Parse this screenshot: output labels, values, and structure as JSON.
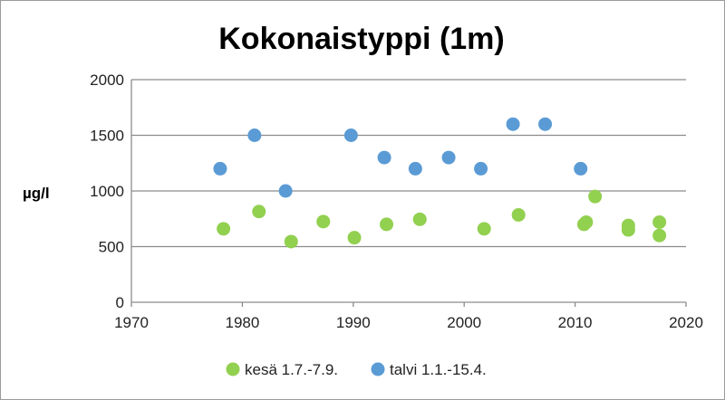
{
  "chart_data": {
    "type": "scatter",
    "title": "Kokonaistyppi (1m)",
    "xlabel": "",
    "ylabel": "µg/l",
    "xlim": [
      1970,
      2020
    ],
    "ylim": [
      0,
      2000
    ],
    "xticks": [
      1970,
      1980,
      1990,
      2000,
      2010,
      2020
    ],
    "yticks": [
      0,
      500,
      1000,
      1500,
      2000
    ],
    "grid": "horizontal",
    "legend_position": "bottom",
    "series": [
      {
        "name": "kesä 1.7.-7.9.",
        "color": "#92d050",
        "points": [
          [
            1978.3,
            660
          ],
          [
            1981.5,
            815
          ],
          [
            1984.4,
            545
          ],
          [
            1987.3,
            725
          ],
          [
            1990.1,
            580
          ],
          [
            1993.0,
            700
          ],
          [
            1996.0,
            745
          ],
          [
            2001.8,
            660
          ],
          [
            2004.9,
            785
          ],
          [
            2010.8,
            700
          ],
          [
            2011.0,
            720
          ],
          [
            2011.8,
            950
          ],
          [
            2014.8,
            690
          ],
          [
            2014.8,
            650
          ],
          [
            2017.6,
            720
          ],
          [
            2017.6,
            600
          ]
        ]
      },
      {
        "name": "talvi 1.1.-15.4.",
        "color": "#5b9bd5",
        "points": [
          [
            1978.0,
            1200
          ],
          [
            1981.1,
            1500
          ],
          [
            1983.9,
            1000
          ],
          [
            1989.8,
            1500
          ],
          [
            1992.8,
            1300
          ],
          [
            1995.6,
            1200
          ],
          [
            1998.6,
            1300
          ],
          [
            2001.5,
            1200
          ],
          [
            2004.4,
            1600
          ],
          [
            2007.3,
            1600
          ],
          [
            2010.5,
            1200
          ]
        ]
      }
    ]
  }
}
